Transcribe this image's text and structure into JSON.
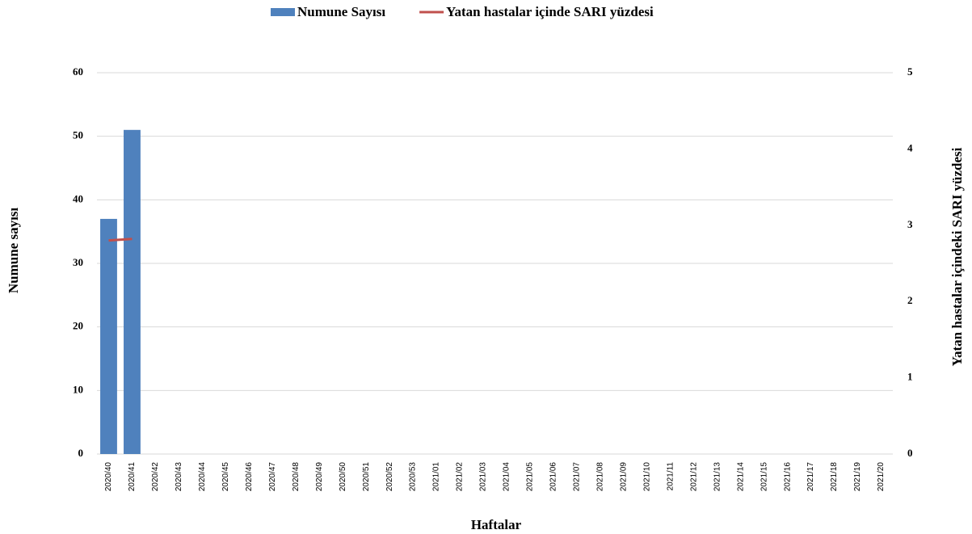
{
  "chart_data": {
    "type": "bar-line",
    "categories": [
      "2020/40",
      "2020/41",
      "2020/42",
      "2020/43",
      "2020/44",
      "2020/45",
      "2020/46",
      "2020/47",
      "2020/48",
      "2020/49",
      "2020/50",
      "2020/51",
      "2020/52",
      "2020/53",
      "2021/01",
      "2021/02",
      "2021/03",
      "2021/04",
      "2021/05",
      "2021/06",
      "2021/07",
      "2021/08",
      "2021/09",
      "2021/10",
      "2021/11",
      "2021/12",
      "2021/13",
      "2021/14",
      "2021/15",
      "2021/16",
      "2021/17",
      "2021/18",
      "2021/19",
      "2021/20"
    ],
    "series": [
      {
        "name": "Numune Sayısı",
        "color": "#4f81bd",
        "type": "bar",
        "values": [
          37,
          51,
          null,
          null,
          null,
          null,
          null,
          null,
          null,
          null,
          null,
          null,
          null,
          null,
          null,
          null,
          null,
          null,
          null,
          null,
          null,
          null,
          null,
          null,
          null,
          null,
          null,
          null,
          null,
          null,
          null,
          null,
          null,
          null
        ]
      },
      {
        "name": "Yatan hastalar içinde SARI yüzdesi",
        "color": "#c0504d",
        "type": "line",
        "axis": "y2",
        "values": [
          2.8,
          2.82,
          null,
          null,
          null,
          null,
          null,
          null,
          null,
          null,
          null,
          null,
          null,
          null,
          null,
          null,
          null,
          null,
          null,
          null,
          null,
          null,
          null,
          null,
          null,
          null,
          null,
          null,
          null,
          null,
          null,
          null,
          null,
          null
        ]
      }
    ],
    "ylabel": "Numune sayısı",
    "y2label": "Yatan hastalar içindeki SARI yüzdesi",
    "xlabel": "Haftalar",
    "ylim": [
      0,
      60
    ],
    "yticks": [
      0,
      10,
      20,
      30,
      40,
      50,
      60
    ],
    "y2lim": [
      0,
      5
    ],
    "y2ticks": [
      0,
      1,
      2,
      3,
      4,
      5
    ],
    "grid": true,
    "legend": "top"
  }
}
